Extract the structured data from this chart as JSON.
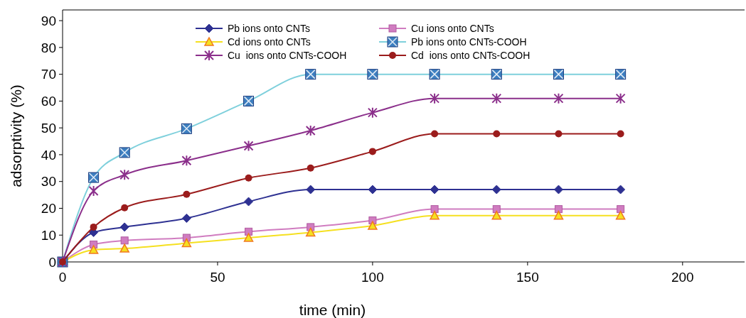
{
  "chart_data": {
    "type": "line",
    "xlabel": "time (min)",
    "ylabel": "adsorptivity (%)",
    "xlim": [
      0,
      220
    ],
    "xticks": [
      0,
      50,
      100,
      150,
      200
    ],
    "ylim": [
      0,
      94
    ],
    "yticks": [
      0,
      10,
      20,
      30,
      40,
      50,
      60,
      70,
      80,
      90
    ],
    "grid": false,
    "legend": "top",
    "line_style": "solid",
    "x": [
      0,
      10,
      20,
      40,
      60,
      80,
      100,
      120,
      140,
      160,
      180
    ],
    "series": [
      {
        "name": "Pb ions onto CNTs",
        "color": "#2e3192",
        "marker": "diamond",
        "values": [
          0,
          11,
          13,
          16.3,
          22.5,
          27,
          27,
          27,
          27,
          27,
          27
        ]
      },
      {
        "name": "Cu ions onto CNTs",
        "color": "#d07cc0",
        "marker": "square",
        "values": [
          0,
          6.5,
          8,
          9,
          11.3,
          13,
          15.5,
          19.7,
          19.7,
          19.7,
          19.7
        ]
      },
      {
        "name": "Cd ions onto CNTs",
        "color": "#f5e020",
        "marker": "triangle",
        "values": [
          0,
          4.5,
          5,
          7,
          9,
          11,
          13.5,
          17.3,
          17.3,
          17.3,
          17.3
        ]
      },
      {
        "name": "Pb ions onto CNTs-COOH",
        "color": "#7fd0dc",
        "marker": "square",
        "values": [
          0,
          31.5,
          40.8,
          49.7,
          60,
          70,
          70,
          70,
          70,
          70,
          70
        ]
      },
      {
        "name": "Cu  ions onto CNTs-COOH",
        "color": "#8b2f8b",
        "marker": "cross",
        "values": [
          0,
          26.5,
          32.5,
          37.8,
          43.3,
          49,
          55.7,
          61,
          61,
          61,
          61
        ]
      },
      {
        "name": "Cd  ions onto CNTs-COOH",
        "color": "#9b1c1c",
        "marker": "circle",
        "values": [
          0,
          13,
          20.2,
          25.2,
          31.3,
          35,
          41.2,
          47.8,
          47.8,
          47.8,
          47.8
        ]
      }
    ]
  }
}
